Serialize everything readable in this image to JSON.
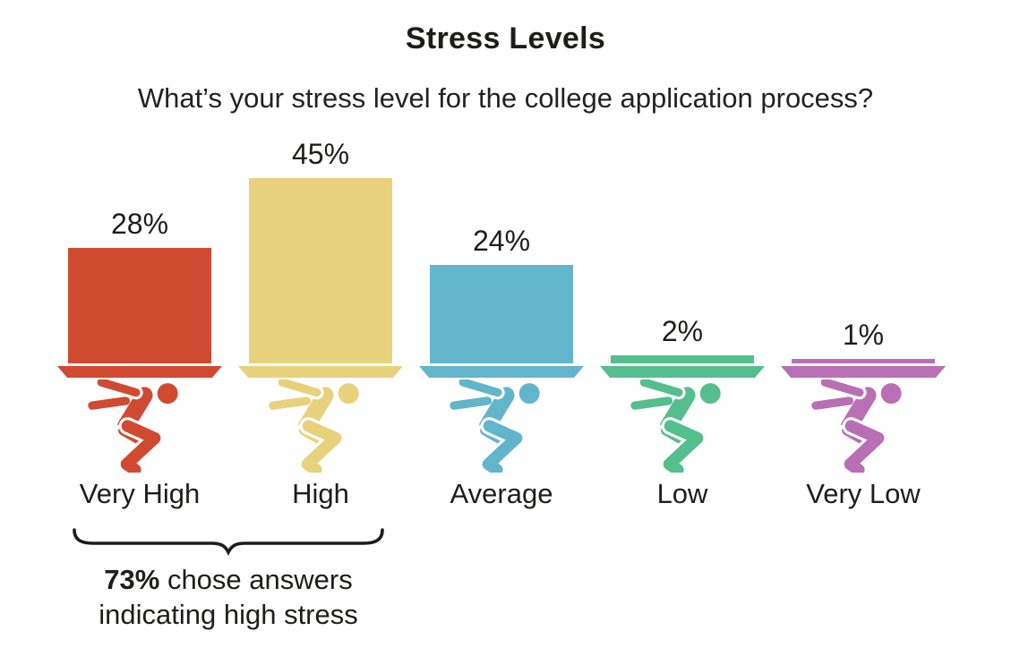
{
  "header": {
    "title": "Stress Levels",
    "subtitle": "What’s your stress level for the college application process?"
  },
  "chart_data": {
    "type": "bar",
    "title": "Stress Levels",
    "question": "What’s your stress level for the college application process?",
    "categories": [
      "Very High",
      "High",
      "Average",
      "Low",
      "Very Low"
    ],
    "values": [
      28,
      45,
      24,
      2,
      1
    ],
    "value_labels": [
      "28%",
      "45%",
      "24%",
      "2%",
      "1%"
    ],
    "unit": "%",
    "colors": [
      "#d04a32",
      "#e8d17d",
      "#62b5cb",
      "#55be8d",
      "#b96fb4"
    ],
    "icon": "person-carrying-heavy-load",
    "grid": false,
    "legend": "none",
    "axes": "none (pictograph bars with direct data labels)"
  },
  "annotation": {
    "bold_value": "73%",
    "line1_rest": " chose answers",
    "line2": "indicating high stress",
    "bracket_covers": [
      "Very High",
      "High"
    ]
  }
}
